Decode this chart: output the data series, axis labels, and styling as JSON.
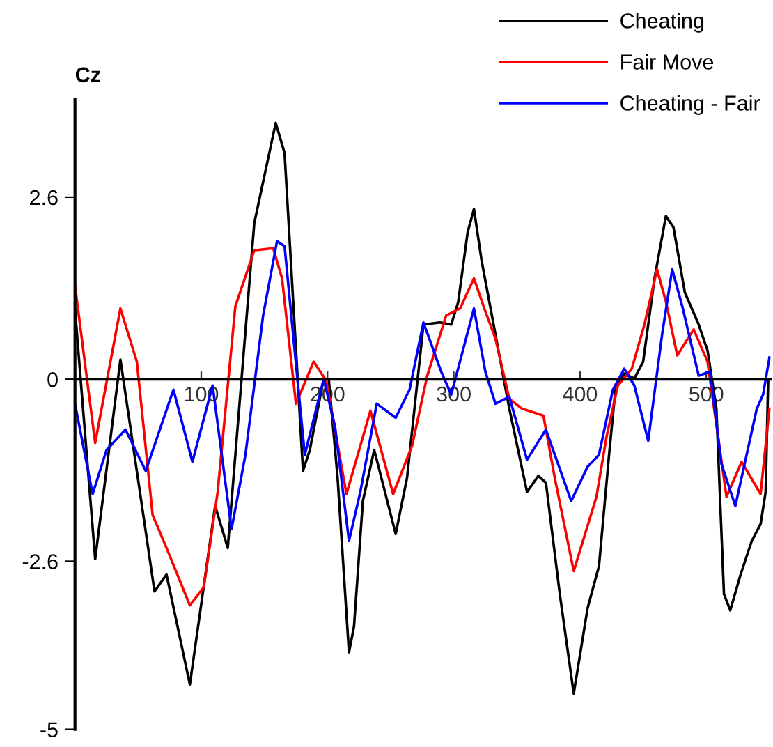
{
  "chart_data": {
    "type": "line",
    "ylabel": "Cz",
    "xlim": [
      0,
      551
    ],
    "ylim": [
      -5,
      4
    ],
    "xticks": [
      100,
      200,
      300,
      400,
      500
    ],
    "yticks": [
      2.6,
      0,
      -2.6,
      -5
    ],
    "grid": false,
    "legend": "top right",
    "line_style": "solid",
    "marker": "none",
    "series": [
      {
        "name": "Cheating",
        "color": "#000000",
        "x": [
          0,
          16,
          36,
          63,
          72.5,
          91,
          111,
          121,
          142,
          159,
          166,
          180.6,
          186,
          197,
          201,
          208,
          217,
          221,
          228,
          237,
          254,
          263,
          276,
          289,
          298,
          303.5,
          311,
          316,
          322,
          333,
          344,
          358,
          367,
          373,
          384,
          395,
          406,
          415,
          423,
          428,
          435,
          443,
          450,
          459,
          468,
          474,
          483,
          494,
          501,
          508,
          514,
          519,
          527,
          536,
          543,
          547,
          549
        ],
        "values": [
          1.0,
          -2.57,
          0.28,
          -3.03,
          -2.79,
          -4.36,
          -1.81,
          -2.41,
          2.23,
          3.66,
          3.23,
          -1.31,
          -1.01,
          0.01,
          0,
          -1.41,
          -3.9,
          -3.53,
          -1.74,
          -1.01,
          -2.21,
          -1.41,
          0.78,
          0.81,
          0.78,
          1.1,
          2.1,
          2.43,
          1.7,
          0.64,
          -0.42,
          -1.61,
          -1.38,
          -1.48,
          -3.07,
          -4.49,
          -3.27,
          -2.67,
          -1.08,
          -0.15,
          0.08,
          0.01,
          0.25,
          1.44,
          2.33,
          2.17,
          1.24,
          0.78,
          0.41,
          -0.42,
          -3.07,
          -3.3,
          -2.8,
          -2.31,
          -2.07,
          -1.61,
          -0.02
        ]
      },
      {
        "name": "Fair Move",
        "color": "#ff0000",
        "x": [
          0,
          16,
          36,
          49,
          61.5,
          72.5,
          91,
          102,
          113,
          127,
          142,
          157,
          164,
          175,
          189,
          199,
          215,
          234,
          252,
          267,
          279,
          294,
          305,
          316,
          325,
          333,
          344,
          354,
          371,
          380,
          395,
          413,
          421,
          430,
          441,
          451,
          461,
          468,
          477,
          490,
          501,
          516,
          528,
          543,
          550
        ],
        "values": [
          1.34,
          -0.91,
          1.01,
          0.25,
          -1.94,
          -2.41,
          -3.23,
          -2.97,
          -1.61,
          1.04,
          1.84,
          1.87,
          1.44,
          -0.35,
          0.25,
          -0.02,
          -1.64,
          -0.45,
          -1.64,
          -0.95,
          0.05,
          0.91,
          1.01,
          1.44,
          0.97,
          0.58,
          -0.28,
          -0.42,
          -0.52,
          -1.41,
          -2.74,
          -1.68,
          -0.82,
          -0.09,
          0.15,
          0.78,
          1.57,
          1.11,
          0.34,
          0.71,
          0.25,
          -1.68,
          -1.18,
          -1.64,
          -0.42
        ]
      },
      {
        "name": "Cheating - Fair",
        "color": "#0000ff",
        "x": [
          0,
          14,
          25,
          40,
          56,
          78,
          93,
          109,
          124,
          135,
          149,
          160,
          166,
          182,
          197,
          206,
          217,
          226,
          239,
          254,
          265,
          276,
          290,
          298,
          316,
          325,
          333,
          344,
          358,
          373,
          393,
          406,
          415,
          426,
          435,
          443,
          454,
          465,
          473,
          481,
          494,
          503,
          512,
          523,
          540,
          545,
          550
        ],
        "values": [
          -0.35,
          -1.64,
          -1.01,
          -0.72,
          -1.31,
          -0.15,
          -1.18,
          -0.09,
          -2.14,
          -1.08,
          0.91,
          1.97,
          1.9,
          -1.08,
          0,
          -0.68,
          -2.31,
          -1.61,
          -0.35,
          -0.55,
          -0.15,
          0.81,
          0.11,
          -0.22,
          1.01,
          0.11,
          -0.35,
          -0.25,
          -1.15,
          -0.72,
          -1.74,
          -1.25,
          -1.08,
          -0.15,
          0.15,
          -0.09,
          -0.88,
          0.64,
          1.57,
          1.04,
          0.05,
          0.11,
          -1.21,
          -1.81,
          -0.42,
          -0.22,
          0.31
        ]
      }
    ]
  }
}
